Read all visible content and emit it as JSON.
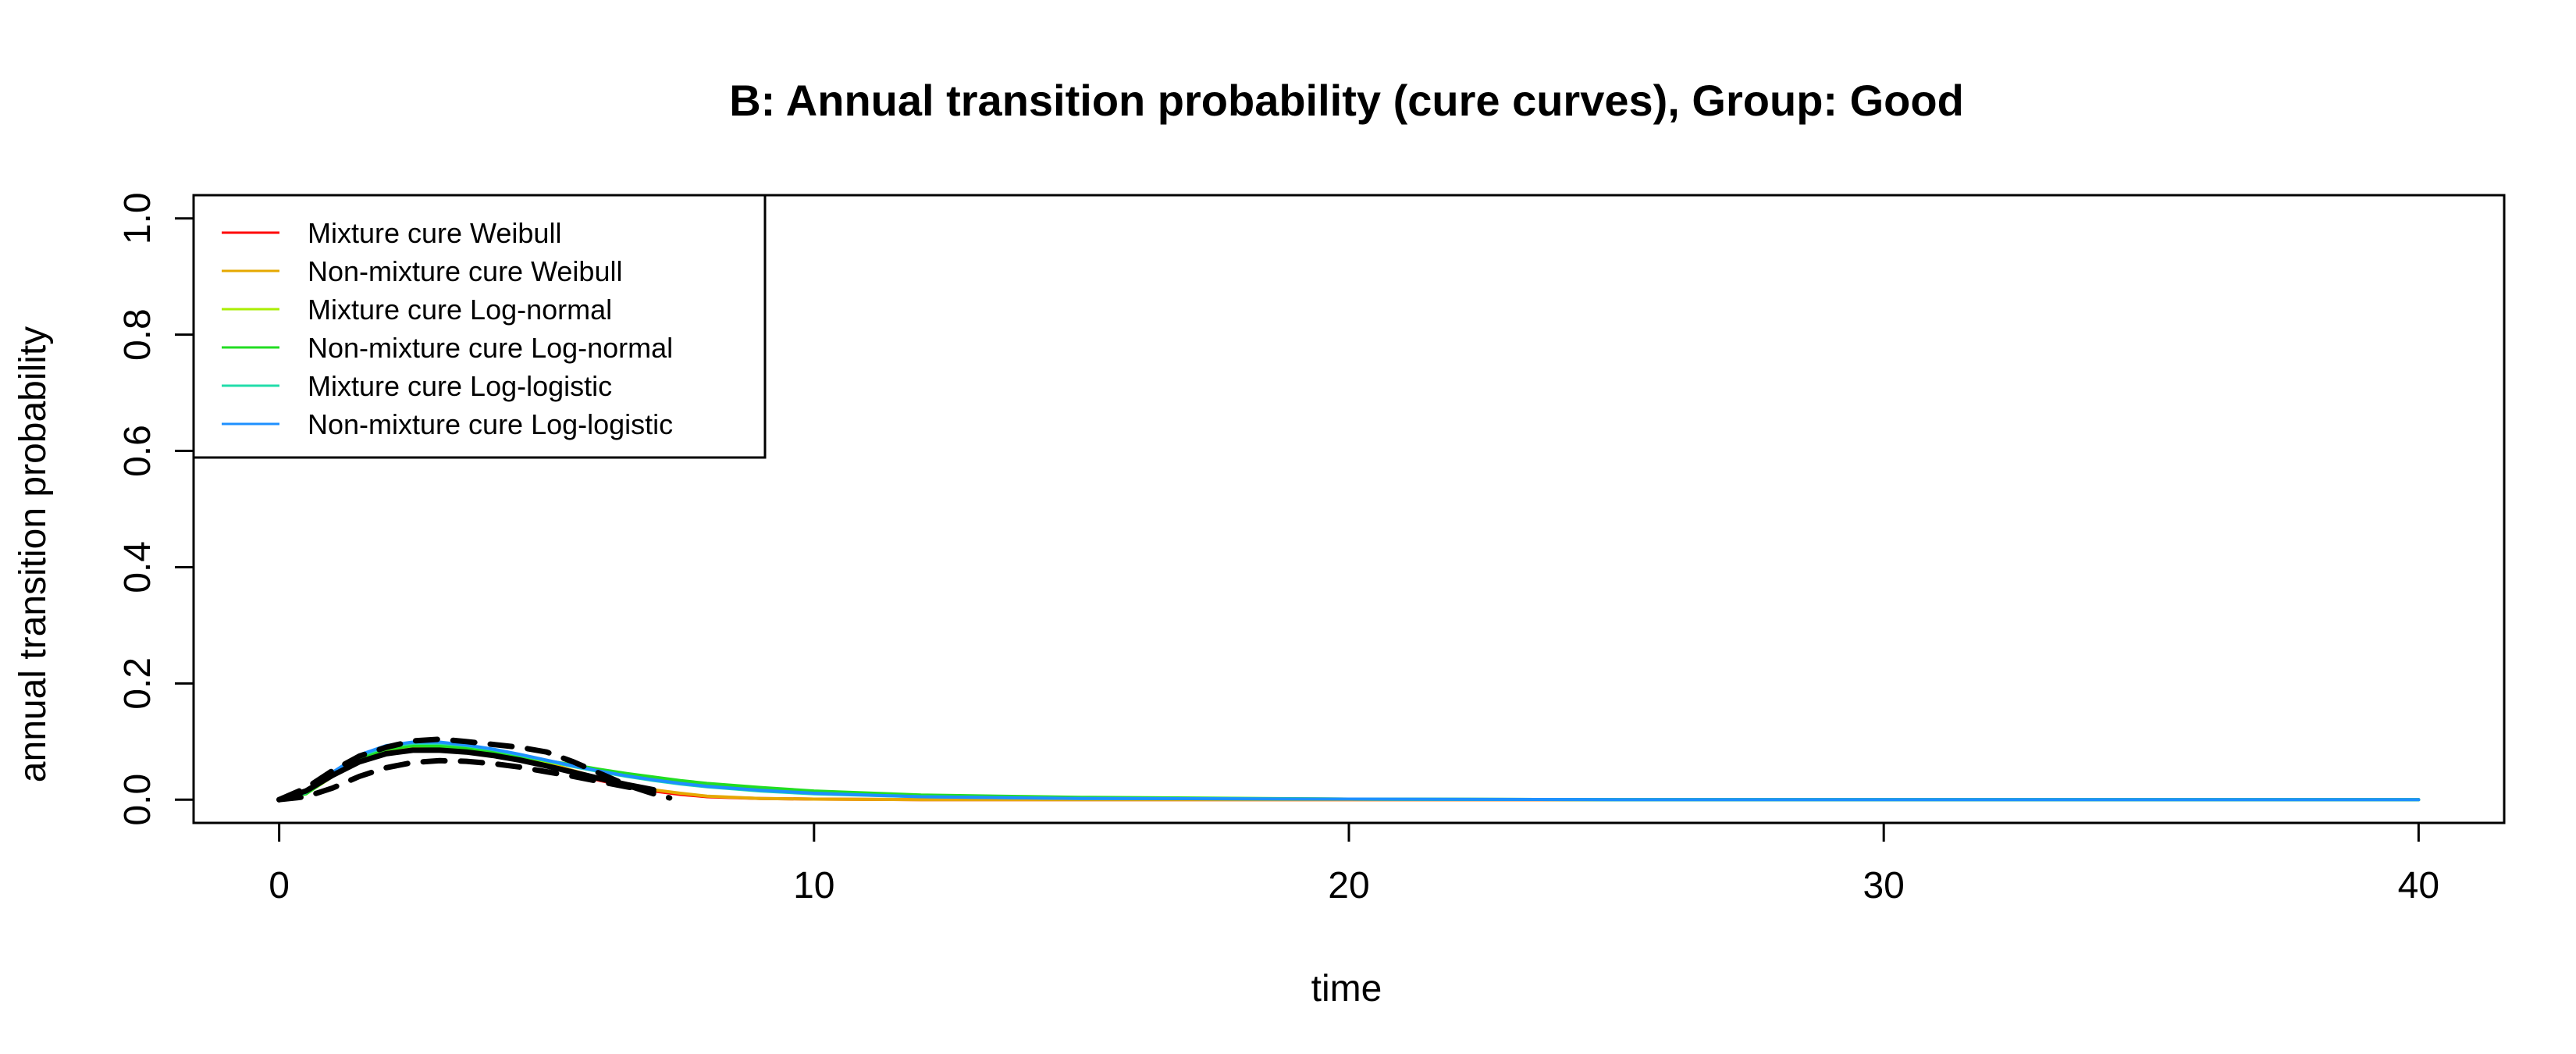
{
  "chart_data": {
    "type": "line",
    "title": "B: Annual transition probability (cure curves), Group: Good",
    "xlabel": "time",
    "ylabel": "annual transition probability",
    "xlim": [
      -1.6,
      41.6
    ],
    "ylim": [
      -0.04,
      1.04
    ],
    "xticks": [
      0,
      10,
      20,
      30,
      40
    ],
    "yticks": [
      0.0,
      0.2,
      0.4,
      0.6,
      0.8,
      1.0
    ],
    "xtick_labels": [
      "0",
      "10",
      "20",
      "30",
      "40"
    ],
    "ytick_labels": [
      "0.0",
      "0.2",
      "0.4",
      "0.6",
      "0.8",
      "1.0"
    ],
    "grid": false,
    "legend_position": "top-left",
    "series": [
      {
        "name": "Mixture cure Weibull",
        "color": "#FF0000",
        "style": "solid",
        "x": [
          0,
          0.5,
          1,
          1.5,
          2,
          2.5,
          3,
          3.5,
          4,
          4.5,
          5,
          5.5,
          6,
          6.5,
          7,
          7.5,
          8,
          9,
          10,
          12,
          15,
          20,
          25,
          30,
          35,
          40
        ],
        "y": [
          0,
          0.015,
          0.04,
          0.065,
          0.08,
          0.088,
          0.09,
          0.087,
          0.08,
          0.07,
          0.058,
          0.045,
          0.033,
          0.023,
          0.015,
          0.009,
          0.005,
          0.002,
          0.001,
          0,
          0,
          0,
          0,
          0,
          0,
          0
        ]
      },
      {
        "name": "Non-mixture cure Weibull",
        "color": "#E6A800",
        "style": "solid",
        "x": [
          0,
          0.5,
          1,
          1.5,
          2,
          2.5,
          3,
          3.5,
          4,
          4.5,
          5,
          5.5,
          6,
          6.5,
          7,
          7.5,
          8,
          9,
          10,
          12,
          15,
          20,
          25,
          30,
          35,
          40
        ],
        "y": [
          0,
          0.016,
          0.042,
          0.068,
          0.085,
          0.093,
          0.095,
          0.093,
          0.086,
          0.076,
          0.063,
          0.05,
          0.037,
          0.026,
          0.017,
          0.011,
          0.006,
          0.002,
          0.001,
          0,
          0,
          0,
          0,
          0,
          0,
          0
        ]
      },
      {
        "name": "Mixture cure Log-normal",
        "color": "#AAEE00",
        "style": "solid",
        "x": [
          0,
          0.5,
          1,
          1.5,
          2,
          2.5,
          3,
          3.5,
          4,
          4.5,
          5,
          5.5,
          6,
          6.5,
          7,
          7.5,
          8,
          9,
          10,
          12,
          15,
          20,
          25,
          30,
          35,
          40
        ],
        "y": [
          0,
          0.01,
          0.04,
          0.07,
          0.085,
          0.091,
          0.09,
          0.086,
          0.08,
          0.073,
          0.065,
          0.058,
          0.05,
          0.043,
          0.037,
          0.031,
          0.026,
          0.019,
          0.013,
          0.007,
          0.003,
          0.001,
          0,
          0,
          0,
          0
        ]
      },
      {
        "name": "Non-mixture cure Log-normal",
        "color": "#22DD22",
        "style": "solid",
        "x": [
          0,
          0.5,
          1,
          1.5,
          2,
          2.5,
          3,
          3.5,
          4,
          4.5,
          5,
          5.5,
          6,
          6.5,
          7,
          7.5,
          8,
          9,
          10,
          12,
          15,
          20,
          25,
          30,
          35,
          40
        ],
        "y": [
          0,
          0.01,
          0.041,
          0.071,
          0.087,
          0.093,
          0.092,
          0.088,
          0.082,
          0.075,
          0.067,
          0.06,
          0.052,
          0.045,
          0.039,
          0.033,
          0.028,
          0.021,
          0.015,
          0.008,
          0.004,
          0.001,
          0,
          0,
          0,
          0
        ]
      },
      {
        "name": "Mixture cure Log-logistic",
        "color": "#22DDAA",
        "style": "solid",
        "x": [
          0,
          0.5,
          1,
          1.5,
          2,
          2.5,
          3,
          3.5,
          4,
          4.5,
          5,
          5.5,
          6,
          6.5,
          7,
          7.5,
          8,
          9,
          10,
          12,
          15,
          20,
          25,
          30,
          35,
          40
        ],
        "y": [
          0,
          0.012,
          0.045,
          0.075,
          0.091,
          0.097,
          0.097,
          0.093,
          0.086,
          0.077,
          0.067,
          0.057,
          0.048,
          0.04,
          0.033,
          0.027,
          0.022,
          0.015,
          0.01,
          0.005,
          0.002,
          0.001,
          0,
          0,
          0,
          0
        ]
      },
      {
        "name": "Non-mixture cure Log-logistic",
        "color": "#1E90FF",
        "style": "solid",
        "x": [
          0,
          0.5,
          1,
          1.5,
          2,
          2.5,
          3,
          3.5,
          4,
          4.5,
          5,
          5.5,
          6,
          6.5,
          7,
          7.5,
          8,
          9,
          10,
          12,
          15,
          20,
          25,
          30,
          35,
          40
        ],
        "y": [
          0,
          0.013,
          0.047,
          0.077,
          0.093,
          0.099,
          0.099,
          0.094,
          0.087,
          0.078,
          0.068,
          0.058,
          0.049,
          0.041,
          0.034,
          0.028,
          0.023,
          0.016,
          0.011,
          0.005,
          0.002,
          0.001,
          0,
          0,
          0,
          0
        ]
      },
      {
        "color": "#000000",
        "style": "dashed-thick",
        "x": [
          0,
          0.5,
          1,
          1.5,
          2,
          2.5,
          3,
          3.5,
          4,
          4.5,
          5,
          5.5,
          6,
          6.5,
          7,
          7.3
        ],
        "y": [
          0,
          0.02,
          0.05,
          0.075,
          0.09,
          0.101,
          0.104,
          0.1,
          0.095,
          0.09,
          0.082,
          0.065,
          0.045,
          0.025,
          0.01,
          0.003
        ]
      },
      {
        "color": "#000000",
        "style": "solid-thick",
        "x": [
          0,
          0.5,
          1,
          1.5,
          2,
          2.5,
          3,
          3.5,
          4,
          4.5,
          5,
          5.5,
          6,
          6.5,
          7
        ],
        "y": [
          0,
          0.015,
          0.042,
          0.065,
          0.079,
          0.085,
          0.085,
          0.082,
          0.076,
          0.068,
          0.058,
          0.047,
          0.036,
          0.026,
          0.017
        ]
      },
      {
        "color": "#000000",
        "style": "dashed-thick",
        "x": [
          0,
          0.5,
          1,
          1.5,
          2,
          2.5,
          3,
          3.5,
          4,
          4.5,
          5,
          5.5,
          6,
          6.5,
          7
        ],
        "y": [
          0,
          0.005,
          0.02,
          0.04,
          0.055,
          0.064,
          0.067,
          0.066,
          0.062,
          0.056,
          0.048,
          0.04,
          0.031,
          0.022,
          0.014
        ]
      }
    ]
  }
}
